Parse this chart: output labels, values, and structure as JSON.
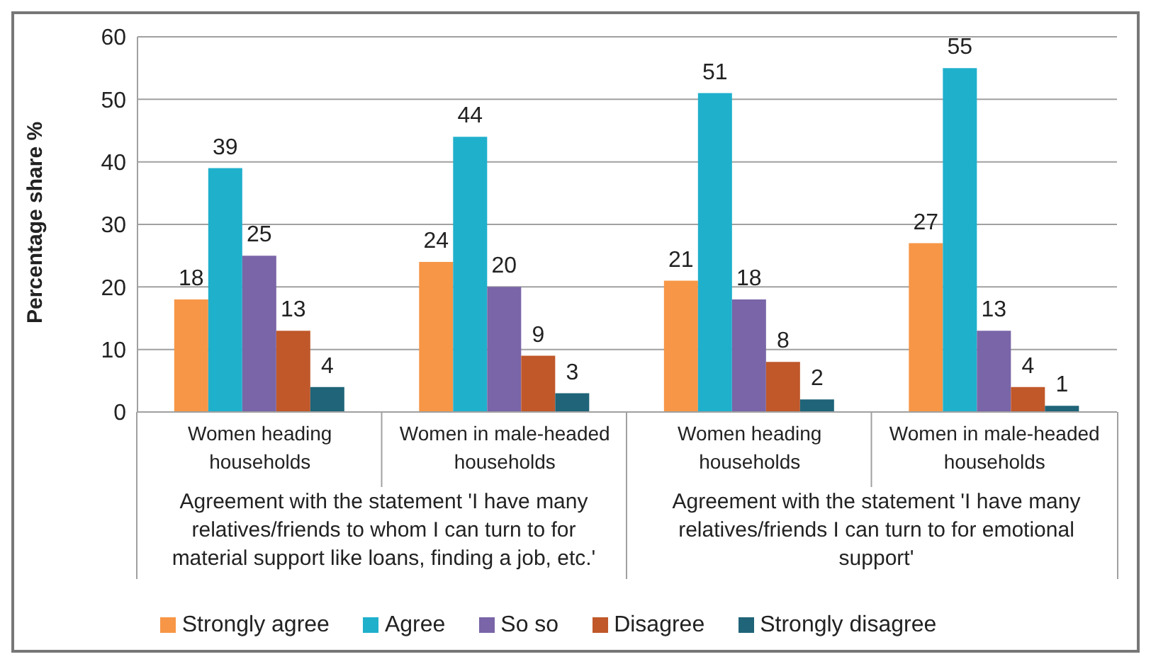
{
  "chart_data": {
    "type": "bar",
    "ylabel": "Percentage share %",
    "categories": [
      "Women heading households",
      "Women in male-headed households",
      "Women heading households",
      "Women in male-headed households"
    ],
    "series": [
      {
        "name": "Strongly agree",
        "color": "#f79646",
        "values": [
          18,
          24,
          21,
          27
        ]
      },
      {
        "name": "Agree",
        "color": "#1fb0cc",
        "values": [
          39,
          44,
          51,
          55
        ]
      },
      {
        "name": "So so",
        "color": "#7965a8",
        "values": [
          25,
          20,
          18,
          13
        ]
      },
      {
        "name": "Disagree",
        "color": "#c0582a",
        "values": [
          13,
          9,
          8,
          4
        ]
      },
      {
        "name": "Strongly disagree",
        "color": "#1f6478",
        "values": [
          4,
          3,
          2,
          1
        ]
      }
    ],
    "annotations": [
      "Agreement with the statement 'I have many relatives/friends to whom I can turn to for material support like loans, finding a job, etc.'",
      "Agreement with the statement 'I have many relatives/friends I can turn to for emotional support'"
    ],
    "ylim": [
      0,
      60
    ],
    "yticks": [
      0,
      10,
      20,
      30,
      40,
      50,
      60
    ],
    "grid": "y",
    "legend": "bottom",
    "data_labels": true
  }
}
